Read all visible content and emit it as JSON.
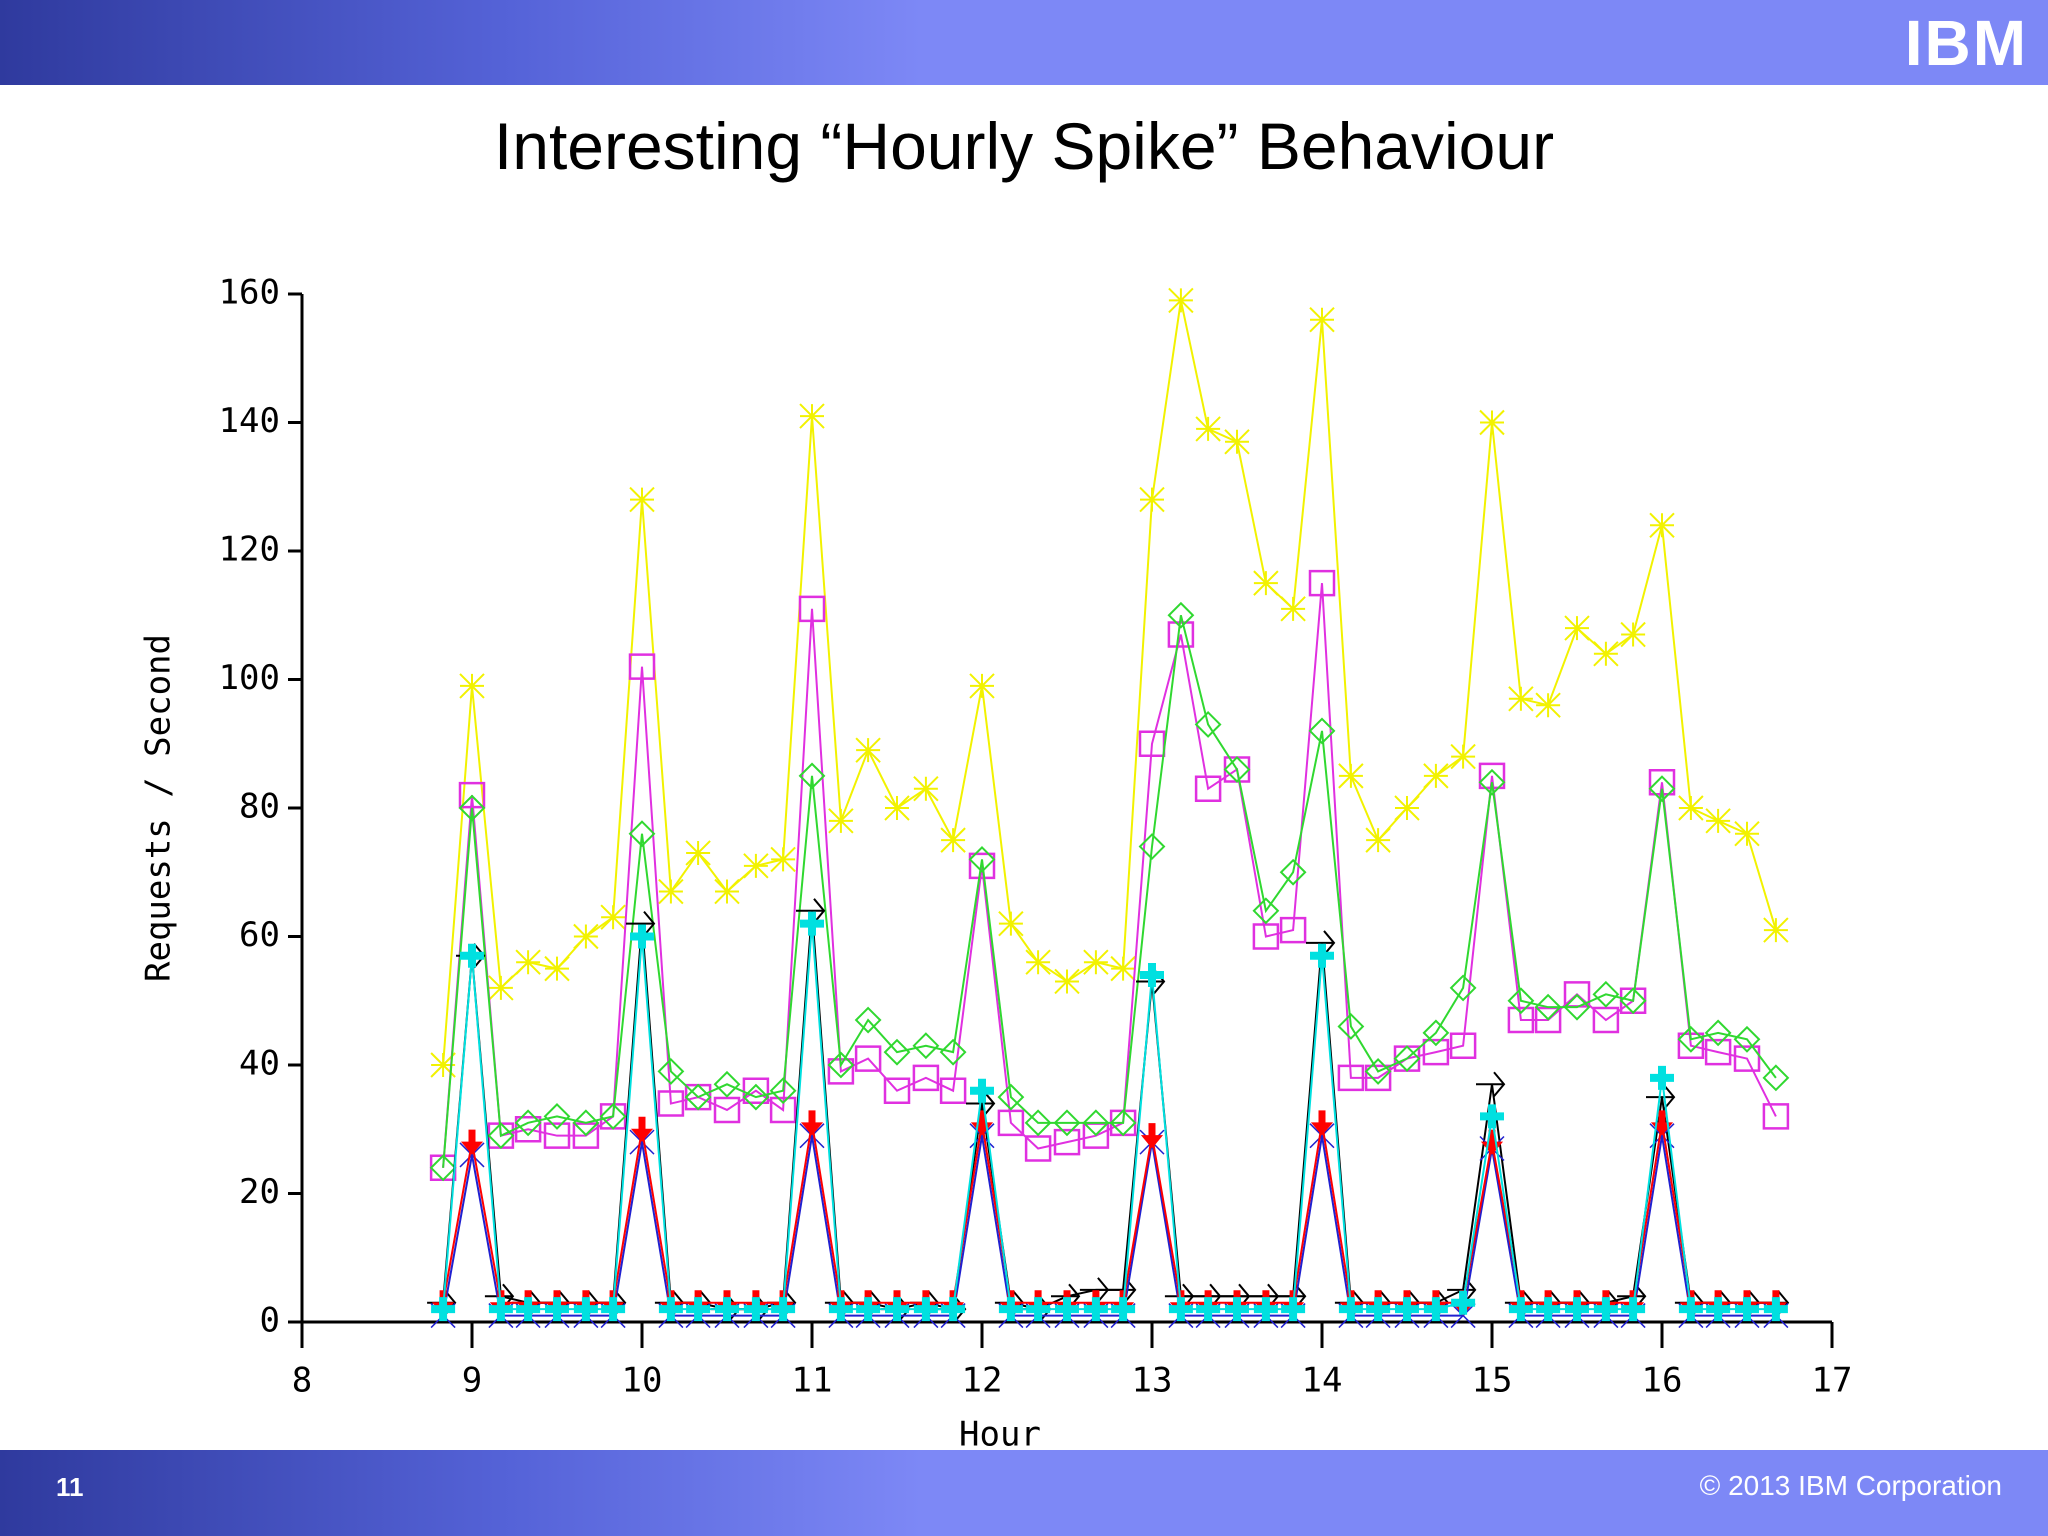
{
  "slide": {
    "logo": "IBM",
    "page": "11",
    "footer": "© 2013 IBM Corporation"
  },
  "chart_data": {
    "type": "line",
    "title": "Interesting “Hourly Spike” Behaviour",
    "xlabel": "Hour",
    "ylabel": "Requests / Second",
    "xlim": [
      8,
      17
    ],
    "ylim": [
      0,
      160
    ],
    "xticks": [
      8,
      9,
      10,
      11,
      12,
      13,
      14,
      15,
      16,
      17
    ],
    "yticks": [
      0,
      20,
      40,
      60,
      80,
      100,
      120,
      140,
      160
    ],
    "x": [
      8.83,
      9,
      9.17,
      9.33,
      9.5,
      9.67,
      9.83,
      10,
      10.17,
      10.33,
      10.5,
      10.67,
      10.83,
      11,
      11.17,
      11.33,
      11.5,
      11.67,
      11.83,
      12,
      12.17,
      12.33,
      12.5,
      12.67,
      12.83,
      13,
      13.17,
      13.33,
      13.5,
      13.67,
      13.83,
      14,
      14.17,
      14.33,
      14.5,
      14.67,
      14.83,
      15,
      15.17,
      15.33,
      15.5,
      15.67,
      15.83,
      16,
      16.17,
      16.33,
      16.5,
      16.67
    ],
    "series": [
      {
        "color": "#f2f200",
        "marker": "asterisk",
        "values": [
          40,
          99,
          52,
          56,
          55,
          60,
          63,
          128,
          67,
          73,
          67,
          71,
          72,
          141,
          78,
          89,
          80,
          83,
          75,
          99,
          62,
          56,
          53,
          56,
          55,
          128,
          159,
          139,
          137,
          115,
          111,
          156,
          85,
          75,
          80,
          85,
          88,
          140,
          97,
          96,
          108,
          104,
          107,
          124,
          80,
          78,
          76,
          61
        ]
      },
      {
        "color": "#e030e0",
        "marker": "square",
        "values": [
          24,
          82,
          29,
          30,
          29,
          29,
          32,
          102,
          34,
          35,
          33,
          36,
          33,
          111,
          39,
          41,
          36,
          38,
          36,
          71,
          31,
          27,
          28,
          29,
          31,
          90,
          107,
          83,
          86,
          60,
          61,
          115,
          38,
          38,
          41,
          42,
          43,
          85,
          47,
          47,
          51,
          47,
          50,
          84,
          43,
          42,
          41,
          32
        ]
      },
      {
        "color": "#30d830",
        "marker": "diamond",
        "values": [
          24,
          80,
          29,
          31,
          32,
          31,
          32,
          76,
          39,
          35,
          37,
          35,
          36,
          85,
          40,
          47,
          42,
          43,
          42,
          72,
          35,
          31,
          31,
          31,
          31,
          74,
          110,
          93,
          86,
          64,
          70,
          92,
          46,
          39,
          41,
          45,
          52,
          84,
          50,
          49,
          49,
          51,
          50,
          83,
          44,
          45,
          44,
          38
        ]
      },
      {
        "color": "#000000",
        "marker": "arrow",
        "values": [
          3,
          57,
          4,
          3,
          3,
          3,
          3,
          62,
          3,
          3,
          2,
          2,
          3,
          64,
          3,
          3,
          2,
          3,
          2,
          34,
          3,
          2,
          4,
          5,
          5,
          53,
          4,
          4,
          4,
          4,
          4,
          59,
          3,
          3,
          3,
          3,
          5,
          37,
          3,
          3,
          3,
          3,
          4,
          35,
          3,
          3,
          3,
          3
        ]
      },
      {
        "color": "#2020d0",
        "marker": "x",
        "values": [
          1,
          26,
          1,
          1,
          1,
          1,
          1,
          28,
          1,
          1,
          1,
          1,
          1,
          29,
          1,
          1,
          1,
          1,
          1,
          29,
          1,
          1,
          1,
          1,
          1,
          28,
          1,
          1,
          1,
          1,
          1,
          29,
          1,
          1,
          1,
          1,
          1,
          27,
          1,
          1,
          1,
          1,
          1,
          29,
          1,
          1,
          1,
          1
        ]
      },
      {
        "color": "#ff0000",
        "marker": "down-arrow",
        "values": [
          3,
          28,
          3,
          3,
          3,
          3,
          3,
          30,
          3,
          3,
          3,
          3,
          3,
          31,
          3,
          3,
          3,
          3,
          3,
          31,
          3,
          3,
          3,
          3,
          3,
          29,
          3,
          3,
          3,
          3,
          3,
          31,
          3,
          3,
          3,
          3,
          3,
          28,
          3,
          3,
          3,
          3,
          3,
          31,
          3,
          3,
          3,
          3
        ]
      },
      {
        "color": "#00e0e0",
        "marker": "cross",
        "values": [
          2,
          57,
          2,
          2,
          2,
          2,
          2,
          60,
          2,
          2,
          2,
          2,
          2,
          62,
          2,
          2,
          2,
          2,
          2,
          36,
          2,
          2,
          2,
          2,
          2,
          54,
          2,
          2,
          2,
          2,
          2,
          57,
          2,
          2,
          2,
          2,
          3,
          32,
          2,
          2,
          2,
          2,
          2,
          38,
          2,
          2,
          2,
          2
        ]
      }
    ]
  }
}
